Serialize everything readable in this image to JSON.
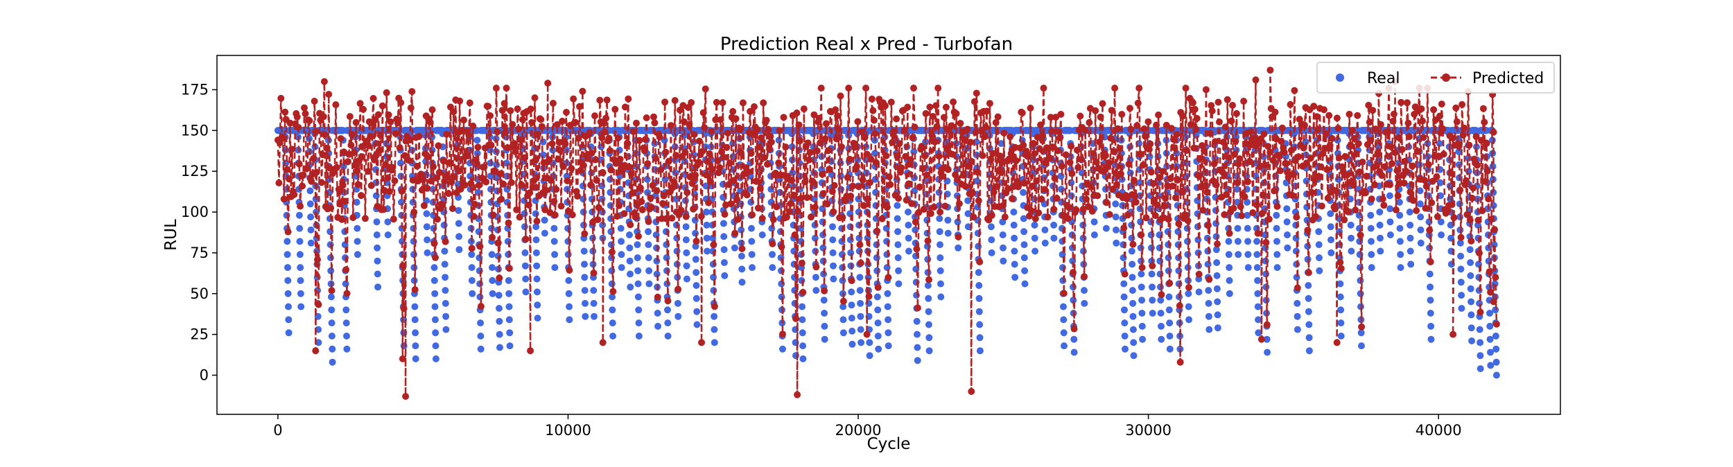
{
  "chart_data": {
    "type": "scatter",
    "title": "Prediction Real x Pred - Turbofan",
    "xlabel": "Cycle",
    "ylabel": "RUL",
    "xlim": [
      -2100,
      44200
    ],
    "ylim": [
      -24,
      196
    ],
    "x_ticks": [
      0,
      10000,
      20000,
      30000,
      40000
    ],
    "x_tick_labels": [
      "0",
      "10000",
      "20000",
      "30000",
      "40000"
    ],
    "y_ticks": [
      0,
      25,
      50,
      75,
      100,
      125,
      150,
      175
    ],
    "y_tick_labels": [
      "0",
      "25",
      "50",
      "75",
      "100",
      "125",
      "150",
      "175"
    ],
    "grid": false,
    "legend_position": "top-right",
    "n_samples": 42000,
    "series": [
      {
        "name": "Real",
        "style": "markers",
        "color": "#4169e1",
        "cap": 150,
        "description": "RUL is clipped at 150 cycles then decreases linearly to the engine's final RUL; one saw-tooth run per engine",
        "engines": [
          {
            "start": 0,
            "end": 380,
            "min": 22
          },
          {
            "start": 380,
            "end": 800,
            "min": 38
          },
          {
            "start": 800,
            "end": 1150,
            "min": 75
          },
          {
            "start": 1150,
            "end": 1400,
            "min": 18
          },
          {
            "start": 1400,
            "end": 1880,
            "min": 8
          },
          {
            "start": 1880,
            "end": 2380,
            "min": 12
          },
          {
            "start": 2380,
            "end": 2750,
            "min": 72
          },
          {
            "start": 2750,
            "end": 3450,
            "min": 50
          },
          {
            "start": 3450,
            "end": 3800,
            "min": 80
          },
          {
            "start": 3800,
            "end": 4350,
            "min": 12
          },
          {
            "start": 4350,
            "end": 4750,
            "min": 10
          },
          {
            "start": 4750,
            "end": 5150,
            "min": 75
          },
          {
            "start": 5150,
            "end": 5450,
            "min": 6
          },
          {
            "start": 5450,
            "end": 5800,
            "min": 22
          },
          {
            "start": 5800,
            "end": 6250,
            "min": 75
          },
          {
            "start": 6250,
            "end": 6700,
            "min": 48
          },
          {
            "start": 6700,
            "end": 7000,
            "min": 12
          },
          {
            "start": 7000,
            "end": 7400,
            "min": 50
          },
          {
            "start": 7400,
            "end": 7650,
            "min": 15
          },
          {
            "start": 7650,
            "end": 8000,
            "min": 12
          },
          {
            "start": 8000,
            "end": 8550,
            "min": 45
          },
          {
            "start": 8550,
            "end": 8950,
            "min": 35
          },
          {
            "start": 8950,
            "end": 9200,
            "min": 85
          },
          {
            "start": 9200,
            "end": 9550,
            "min": 60
          },
          {
            "start": 9550,
            "end": 10050,
            "min": 30
          },
          {
            "start": 10050,
            "end": 10600,
            "min": 30
          },
          {
            "start": 10600,
            "end": 10900,
            "min": 32
          },
          {
            "start": 10900,
            "end": 11200,
            "min": 80
          },
          {
            "start": 11200,
            "end": 11550,
            "min": 18
          },
          {
            "start": 11550,
            "end": 11850,
            "min": 62
          },
          {
            "start": 11850,
            "end": 12150,
            "min": 50
          },
          {
            "start": 12150,
            "end": 12450,
            "min": 20
          },
          {
            "start": 12450,
            "end": 12800,
            "min": 50
          },
          {
            "start": 12800,
            "end": 13100,
            "min": 26
          },
          {
            "start": 13100,
            "end": 13450,
            "min": 18
          },
          {
            "start": 13450,
            "end": 13800,
            "min": 30
          },
          {
            "start": 13800,
            "end": 14100,
            "min": 55
          },
          {
            "start": 14100,
            "end": 14450,
            "min": 25
          },
          {
            "start": 14450,
            "end": 14800,
            "min": 70
          },
          {
            "start": 14800,
            "end": 15050,
            "min": 18
          },
          {
            "start": 15050,
            "end": 15400,
            "min": 55
          },
          {
            "start": 15400,
            "end": 15750,
            "min": 72
          },
          {
            "start": 15750,
            "end": 16000,
            "min": 55
          },
          {
            "start": 16000,
            "end": 16350,
            "min": 60
          },
          {
            "start": 16350,
            "end": 16700,
            "min": 80
          },
          {
            "start": 16700,
            "end": 17050,
            "min": 60
          },
          {
            "start": 17050,
            "end": 17400,
            "min": 10
          },
          {
            "start": 17400,
            "end": 17850,
            "min": 10
          },
          {
            "start": 17850,
            "end": 18100,
            "min": 8
          },
          {
            "start": 18100,
            "end": 18550,
            "min": 50
          },
          {
            "start": 18550,
            "end": 18850,
            "min": 18
          },
          {
            "start": 18850,
            "end": 19150,
            "min": 55
          },
          {
            "start": 19150,
            "end": 19500,
            "min": 20
          },
          {
            "start": 19500,
            "end": 19800,
            "min": 15
          },
          {
            "start": 19800,
            "end": 20100,
            "min": 16
          },
          {
            "start": 20100,
            "end": 20400,
            "min": 8
          },
          {
            "start": 20400,
            "end": 20700,
            "min": 12
          },
          {
            "start": 20700,
            "end": 21050,
            "min": 12
          },
          {
            "start": 21050,
            "end": 21400,
            "min": 50
          },
          {
            "start": 21400,
            "end": 21750,
            "min": 70
          },
          {
            "start": 21750,
            "end": 22050,
            "min": 5
          },
          {
            "start": 22050,
            "end": 22450,
            "min": 15
          },
          {
            "start": 22450,
            "end": 22850,
            "min": 48
          },
          {
            "start": 22850,
            "end": 23100,
            "min": 85
          },
          {
            "start": 23100,
            "end": 23450,
            "min": 72
          },
          {
            "start": 23450,
            "end": 23800,
            "min": 85
          },
          {
            "start": 23800,
            "end": 24200,
            "min": 15
          },
          {
            "start": 24200,
            "end": 24600,
            "min": 75
          },
          {
            "start": 24600,
            "end": 25000,
            "min": 70
          },
          {
            "start": 25000,
            "end": 25400,
            "min": 60
          },
          {
            "start": 25400,
            "end": 25750,
            "min": 50
          },
          {
            "start": 25750,
            "end": 26100,
            "min": 70
          },
          {
            "start": 26100,
            "end": 26450,
            "min": 75
          },
          {
            "start": 26450,
            "end": 26750,
            "min": 80
          },
          {
            "start": 26750,
            "end": 27100,
            "min": 12
          },
          {
            "start": 27100,
            "end": 27450,
            "min": 8
          },
          {
            "start": 27450,
            "end": 27800,
            "min": 38
          },
          {
            "start": 27800,
            "end": 28150,
            "min": 80
          },
          {
            "start": 28150,
            "end": 28550,
            "min": 90
          },
          {
            "start": 28550,
            "end": 28900,
            "min": 75
          },
          {
            "start": 28900,
            "end": 29200,
            "min": 12
          },
          {
            "start": 29200,
            "end": 29500,
            "min": 8
          },
          {
            "start": 29500,
            "end": 29800,
            "min": 18
          },
          {
            "start": 29800,
            "end": 30150,
            "min": 32
          },
          {
            "start": 30150,
            "end": 30450,
            "min": 18
          },
          {
            "start": 30450,
            "end": 30750,
            "min": 12
          },
          {
            "start": 30750,
            "end": 31100,
            "min": 10
          },
          {
            "start": 31100,
            "end": 31400,
            "min": 30
          },
          {
            "start": 31400,
            "end": 31750,
            "min": 45
          },
          {
            "start": 31750,
            "end": 32100,
            "min": 22
          },
          {
            "start": 32100,
            "end": 32400,
            "min": 25
          },
          {
            "start": 32400,
            "end": 32800,
            "min": 50
          },
          {
            "start": 32800,
            "end": 33100,
            "min": 70
          },
          {
            "start": 33100,
            "end": 33450,
            "min": 60
          },
          {
            "start": 33450,
            "end": 33800,
            "min": 20
          },
          {
            "start": 33800,
            "end": 34100,
            "min": 10
          },
          {
            "start": 34100,
            "end": 34450,
            "min": 60
          },
          {
            "start": 34450,
            "end": 34800,
            "min": 72
          },
          {
            "start": 34800,
            "end": 35150,
            "min": 22
          },
          {
            "start": 35150,
            "end": 35550,
            "min": 15
          },
          {
            "start": 35550,
            "end": 35900,
            "min": 58
          },
          {
            "start": 35900,
            "end": 36300,
            "min": 75
          },
          {
            "start": 36300,
            "end": 36650,
            "min": 18
          },
          {
            "start": 36650,
            "end": 37000,
            "min": 70
          },
          {
            "start": 37000,
            "end": 37350,
            "min": 12
          },
          {
            "start": 37350,
            "end": 37700,
            "min": 60
          },
          {
            "start": 37700,
            "end": 38000,
            "min": 72
          },
          {
            "start": 38000,
            "end": 38350,
            "min": 80
          },
          {
            "start": 38350,
            "end": 38700,
            "min": 60
          },
          {
            "start": 38700,
            "end": 39050,
            "min": 62
          },
          {
            "start": 39050,
            "end": 39400,
            "min": 75
          },
          {
            "start": 39400,
            "end": 39750,
            "min": 16
          },
          {
            "start": 39750,
            "end": 40100,
            "min": 80
          },
          {
            "start": 40100,
            "end": 40450,
            "min": 62
          },
          {
            "start": 40450,
            "end": 40800,
            "min": 35
          },
          {
            "start": 40800,
            "end": 41150,
            "min": 15
          },
          {
            "start": 41150,
            "end": 41450,
            "min": 0
          },
          {
            "start": 41450,
            "end": 41800,
            "min": 0
          },
          {
            "start": 41800,
            "end": 42000,
            "min": 0
          }
        ]
      },
      {
        "name": "Predicted",
        "style": "line+markers",
        "color": "#b22222",
        "line_dash": "dashed",
        "description": "Noisy predictions oscillating roughly between 90 and 175, with dips following the real RUL troughs",
        "dips": [
          {
            "x": 4400,
            "y": -13
          },
          {
            "x": 1300,
            "y": 15
          },
          {
            "x": 4300,
            "y": 10
          },
          {
            "x": 8700,
            "y": 15
          },
          {
            "x": 11200,
            "y": 20
          },
          {
            "x": 14600,
            "y": 20
          },
          {
            "x": 17900,
            "y": -12
          },
          {
            "x": 20300,
            "y": 25
          },
          {
            "x": 23900,
            "y": -10
          },
          {
            "x": 31100,
            "y": 8
          },
          {
            "x": 33900,
            "y": 22
          },
          {
            "x": 36500,
            "y": 20
          },
          {
            "x": 40500,
            "y": 25
          },
          {
            "x": 41900,
            "y": 45
          }
        ],
        "peaks": [
          {
            "x": 34200,
            "y": 187
          },
          {
            "x": 1600,
            "y": 180
          },
          {
            "x": 9300,
            "y": 179
          },
          {
            "x": 33700,
            "y": 181
          },
          {
            "x": 38500,
            "y": 180
          }
        ]
      }
    ]
  }
}
